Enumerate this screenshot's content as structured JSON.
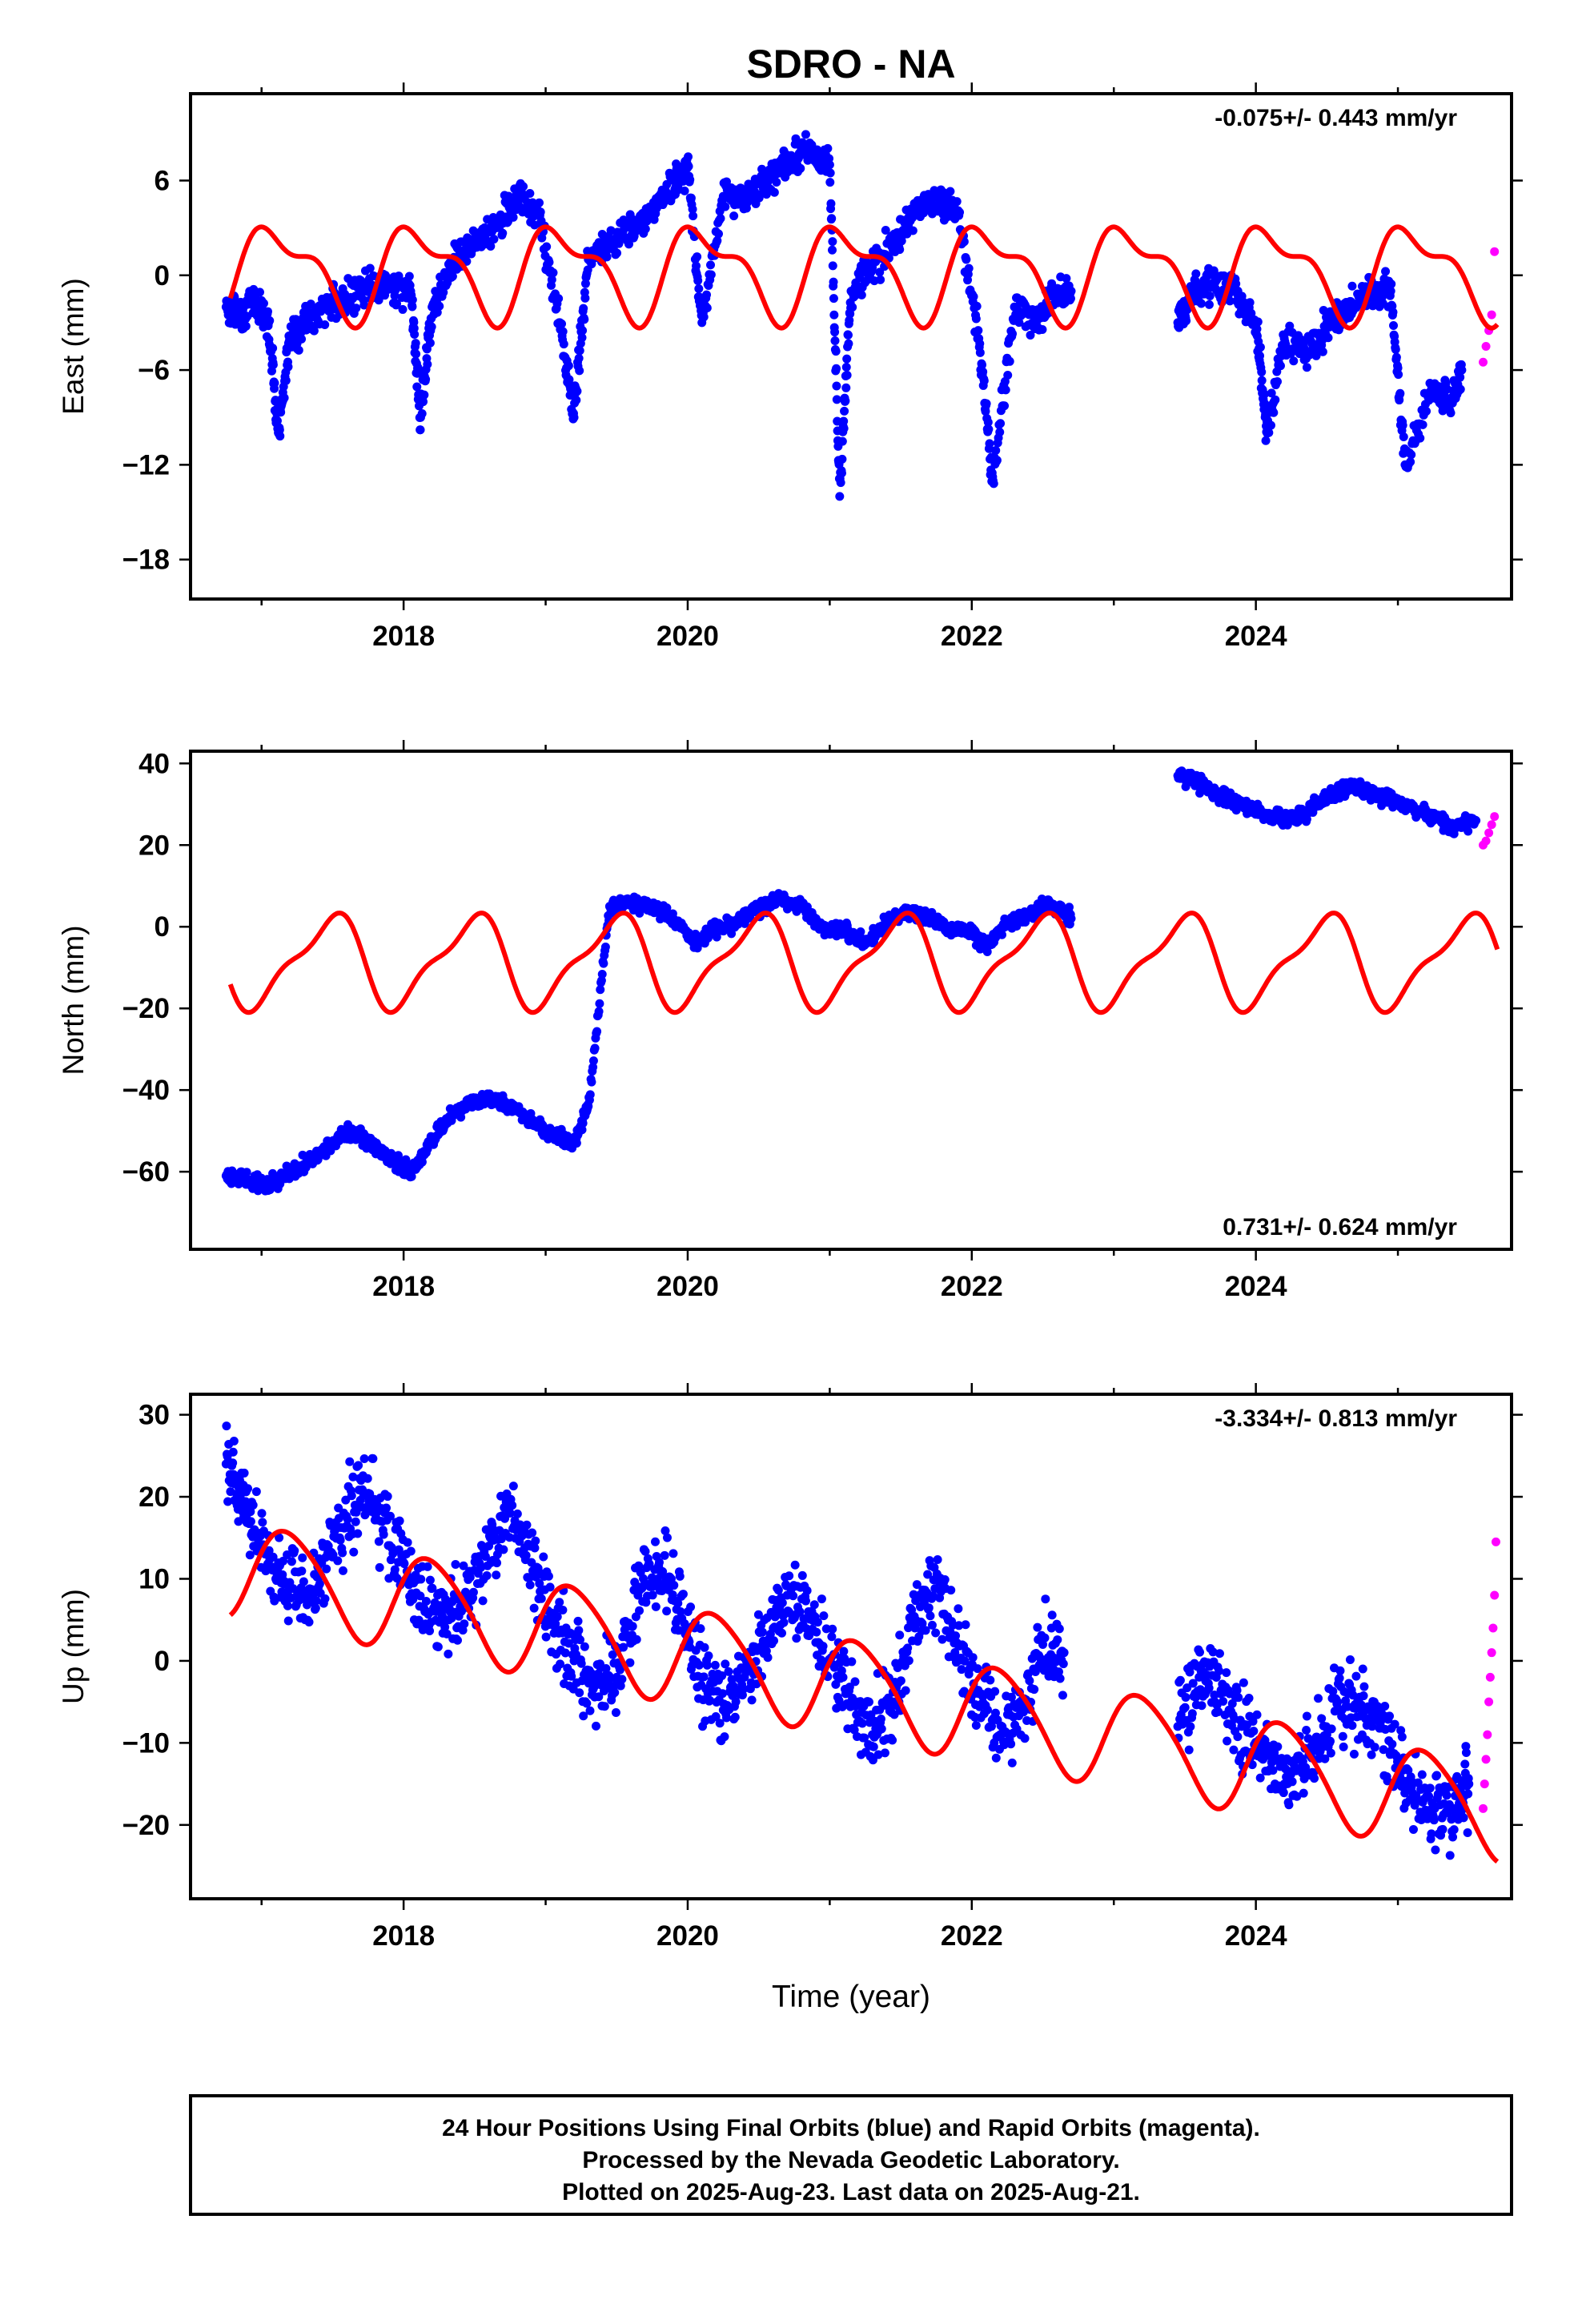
{
  "title": "SDRO - NA",
  "xlabel": "Time (year)",
  "colors": {
    "final": "#0000ff",
    "rapid": "#ff00ff",
    "model": "#ff0000",
    "axes": "#000000"
  },
  "footer": {
    "line1": "24 Hour Positions Using Final Orbits (blue) and Rapid Orbits (magenta).",
    "line2": "Processed by the Nevada Geodetic Laboratory.",
    "line3": "Plotted on 2025-Aug-23. Last data on 2025-Aug-21."
  },
  "chart_data": [
    {
      "type": "scatter",
      "ylabel": "East (mm)",
      "rate": "-0.075+/- 0.443 mm/yr",
      "rate_position": "top-right",
      "xlim": [
        2016.5,
        2025.8
      ],
      "ylim": [
        -20.5,
        11.5
      ],
      "xticks": [
        2018,
        2020,
        2022,
        2024
      ],
      "yticks": [
        6,
        0,
        -6,
        -12,
        -18
      ],
      "ytick_labels": [
        "6",
        "0",
        "−6",
        "−12",
        "−18"
      ],
      "series": [
        {
          "kind": "final",
          "x": [
            2016.75,
            2016.85,
            2016.95,
            2017.05,
            2017.12,
            2017.2,
            2017.3,
            2017.45,
            2017.6,
            2017.75,
            2017.9,
            2018.05,
            2018.12,
            2018.2,
            2018.35,
            2018.5,
            2018.65,
            2018.8,
            2018.95,
            2019.1,
            2019.2,
            2019.3,
            2019.45,
            2019.6,
            2019.75,
            2019.9,
            2020.0,
            2020.1,
            2020.25,
            2020.4,
            2020.55,
            2020.7,
            2020.85,
            2021.0,
            2021.07,
            2021.15,
            2021.3,
            2021.45,
            2021.6,
            2021.75,
            2021.9,
            2022.05,
            2022.15,
            2022.3,
            2022.45,
            2022.6,
            2022.7,
            2023.45,
            2023.55,
            2023.7,
            2023.85,
            2024.0,
            2024.08,
            2024.2,
            2024.35,
            2024.5,
            2024.65,
            2024.8,
            2024.95,
            2025.05,
            2025.25,
            2025.35,
            2025.45
          ],
          "y": [
            -2,
            -2.5,
            -1.5,
            -3,
            -10,
            -4,
            -3,
            -2,
            -1.5,
            -1,
            -0.5,
            -1,
            -9,
            -2,
            1,
            2,
            3,
            5,
            4,
            -3,
            -9,
            1,
            2,
            3,
            4,
            6,
            7,
            -3,
            5,
            5,
            6,
            7,
            8,
            7,
            -14,
            -1,
            0.5,
            2,
            4,
            5,
            4,
            -4,
            -13,
            -2,
            -3,
            -1,
            -1,
            -3,
            -1,
            -0.5,
            -1,
            -3,
            -10,
            -4,
            -5,
            -3,
            -2,
            -1,
            -1,
            -12,
            -7,
            -8,
            -6
          ]
        },
        {
          "kind": "rapid",
          "x": [
            2025.6,
            2025.62,
            2025.64,
            2025.66,
            2025.68
          ],
          "y": [
            -5.5,
            -4.5,
            -3.5,
            -2.5,
            1.5
          ]
        },
        {
          "kind": "model",
          "amp1": 2.6,
          "amp2": 1.2,
          "phase1": 0.85,
          "phase2": 2.4,
          "offset": 0.3
        }
      ]
    },
    {
      "type": "scatter",
      "ylabel": "North (mm)",
      "rate": "0.731+/- 0.624 mm/yr",
      "rate_position": "bottom-right",
      "xlim": [
        2016.5,
        2025.8
      ],
      "ylim": [
        -79,
        43
      ],
      "xticks": [
        2018,
        2020,
        2022,
        2024
      ],
      "yticks": [
        40,
        20,
        0,
        -20,
        -40,
        -60
      ],
      "ytick_labels": [
        "40",
        "20",
        "0",
        "−20",
        "−40",
        "−60"
      ],
      "series": [
        {
          "kind": "final",
          "x": [
            2016.75,
            2016.9,
            2017.05,
            2017.2,
            2017.35,
            2017.5,
            2017.65,
            2017.8,
            2017.95,
            2018.05,
            2018.15,
            2018.3,
            2018.45,
            2018.6,
            2018.75,
            2018.9,
            2019.05,
            2019.2,
            2019.3,
            2019.45,
            2019.6,
            2019.75,
            2019.9,
            2020.05,
            2020.2,
            2020.35,
            2020.5,
            2020.65,
            2020.8,
            2020.95,
            2021.1,
            2021.25,
            2021.4,
            2021.55,
            2021.7,
            2021.85,
            2022.0,
            2022.1,
            2022.25,
            2022.4,
            2022.55,
            2022.7,
            2023.45,
            2023.6,
            2023.75,
            2023.9,
            2024.05,
            2024.2,
            2024.35,
            2024.5,
            2024.65,
            2024.8,
            2024.95,
            2025.1,
            2025.25,
            2025.4,
            2025.55
          ],
          "y": [
            -61,
            -62,
            -63,
            -60,
            -57,
            -53,
            -50,
            -54,
            -58,
            -60,
            -55,
            -47,
            -44,
            -42,
            -44,
            -48,
            -51,
            -53,
            -44,
            5,
            6,
            5,
            2,
            -4,
            0,
            1,
            4,
            7,
            5,
            0,
            -1,
            -4,
            1,
            4,
            2,
            -1,
            -1,
            -5,
            1,
            3,
            6,
            2,
            37,
            35,
            32,
            30,
            28,
            26,
            28,
            32,
            34,
            33,
            31,
            29,
            27,
            24,
            26
          ]
        },
        {
          "kind": "rapid",
          "x": [
            2025.6,
            2025.62,
            2025.64,
            2025.66,
            2025.68
          ],
          "y": [
            20,
            21,
            23,
            25,
            27
          ]
        },
        {
          "kind": "model",
          "amp1": 10.5,
          "amp2": 3.5,
          "phase1": -1.4,
          "phase2": 0.2,
          "offset": -8.5
        }
      ]
    },
    {
      "type": "scatter",
      "ylabel": "Up (mm)",
      "rate": "-3.334+/- 0.813 mm/yr",
      "rate_position": "top-right",
      "xlim": [
        2016.5,
        2025.8
      ],
      "ylim": [
        -29,
        32.5
      ],
      "xticks": [
        2018,
        2020,
        2022,
        2024
      ],
      "yticks": [
        30,
        20,
        10,
        0,
        -10,
        -20
      ],
      "ytick_labels": [
        "30",
        "20",
        "10",
        "0",
        "−10",
        "−20"
      ],
      "series": [
        {
          "kind": "final",
          "x": [
            2016.75,
            2016.85,
            2016.95,
            2017.1,
            2017.25,
            2017.4,
            2017.55,
            2017.7,
            2017.85,
            2018.0,
            2018.15,
            2018.3,
            2018.45,
            2018.6,
            2018.75,
            2018.9,
            2019.05,
            2019.2,
            2019.35,
            2019.5,
            2019.65,
            2019.8,
            2019.95,
            2020.1,
            2020.25,
            2020.4,
            2020.55,
            2020.7,
            2020.85,
            2021.0,
            2021.15,
            2021.3,
            2021.45,
            2021.6,
            2021.75,
            2021.9,
            2022.05,
            2022.2,
            2022.35,
            2022.5,
            2022.65,
            2023.45,
            2023.6,
            2023.75,
            2023.9,
            2024.05,
            2024.2,
            2024.35,
            2024.5,
            2024.65,
            2024.8,
            2024.95,
            2025.1,
            2025.25,
            2025.4,
            2025.5
          ],
          "y": [
            24,
            20,
            16,
            10,
            8,
            9,
            15,
            22,
            17,
            12,
            6,
            5,
            7,
            14,
            18,
            12,
            5,
            0,
            -3,
            -2,
            8,
            12,
            6,
            -2,
            -6,
            -2,
            2,
            8,
            6,
            0,
            -5,
            -9,
            -5,
            4,
            10,
            2,
            -4,
            -9,
            -6,
            2,
            1,
            -8,
            -2,
            -4,
            -8,
            -12,
            -15,
            -13,
            -9,
            -4,
            -6,
            -11,
            -16,
            -19,
            -18,
            -15
          ]
        },
        {
          "kind": "rapid",
          "x": [
            2025.6,
            2025.61,
            2025.62,
            2025.63,
            2025.64,
            2025.65,
            2025.66,
            2025.67,
            2025.68,
            2025.69
          ],
          "y": [
            -18,
            -15,
            -12,
            -9,
            -5,
            -2,
            1,
            4,
            8,
            14.5
          ]
        },
        {
          "kind": "model",
          "amp1": 5.8,
          "amp2": 0.8,
          "phase1": 0.3,
          "phase2": 1.2,
          "offset": 0,
          "trend_start": 11.5,
          "trend_rate": -3.334
        }
      ]
    }
  ]
}
